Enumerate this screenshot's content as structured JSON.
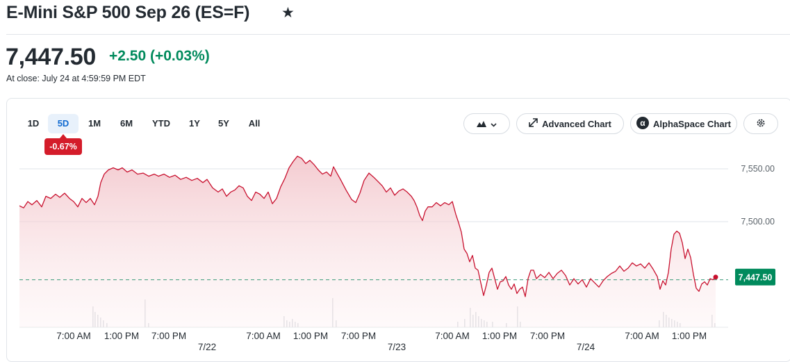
{
  "header": {
    "title": "E-Mini S&P 500 Sep 26 (ES=F)",
    "price": "7,447.50",
    "change": "+2.50  (+0.03%)",
    "close_time": "At close: July 24 at 4:59:59 PM EDT",
    "star_icon": "star-icon"
  },
  "ranges": [
    "1D",
    "5D",
    "1M",
    "6M",
    "YTD",
    "1Y",
    "5Y",
    "All"
  ],
  "active_range": "5D",
  "range_change_badge": "-0.67%",
  "toolbar": {
    "chart_type_icon": "mountain-chart-icon",
    "advanced_label": "Advanced Chart",
    "alphaspace_label": "AlphaSpace Chart",
    "settings_icon": "gear-icon"
  },
  "colors": {
    "line": "#c8102e",
    "fill": "#f6d4d8",
    "up": "#008a5c",
    "badge": "#d41c2a",
    "volume": "#dfe1e4"
  },
  "chart_data": {
    "type": "area",
    "yticks": [
      7500,
      7550
    ],
    "ytick_labels": [
      "7,500.00",
      "7,550.00"
    ],
    "ylim": [
      7420,
      7565
    ],
    "previous_close_line": 7445,
    "last_price_label": "7,447.50",
    "days": [
      "7/22",
      "7/23",
      "7/24"
    ],
    "xtick_labels": [
      "7:00 AM",
      "1:00 PM",
      "7:00 PM",
      "7:00 AM",
      "1:00 PM",
      "7:00 PM",
      "7:00 AM",
      "1:00 PM",
      "7:00 PM",
      "7:00 AM",
      "1:00 PM"
    ],
    "xlabel": "",
    "ylabel": "",
    "grid": true,
    "price_points": [
      [
        0,
        7515
      ],
      [
        6,
        7513
      ],
      [
        12,
        7519
      ],
      [
        18,
        7516
      ],
      [
        25,
        7520
      ],
      [
        32,
        7514
      ],
      [
        38,
        7524
      ],
      [
        45,
        7522
      ],
      [
        52,
        7526
      ],
      [
        58,
        7523
      ],
      [
        65,
        7527
      ],
      [
        72,
        7522
      ],
      [
        78,
        7519
      ],
      [
        84,
        7514
      ],
      [
        90,
        7522
      ],
      [
        96,
        7518
      ],
      [
        102,
        7522
      ],
      [
        108,
        7516
      ],
      [
        113,
        7524
      ],
      [
        117,
        7537
      ],
      [
        122,
        7545
      ],
      [
        128,
        7549
      ],
      [
        135,
        7551
      ],
      [
        142,
        7549
      ],
      [
        148,
        7551
      ],
      [
        155,
        7547
      ],
      [
        162,
        7549
      ],
      [
        170,
        7545
      ],
      [
        178,
        7546
      ],
      [
        186,
        7543
      ],
      [
        194,
        7545
      ],
      [
        200,
        7543
      ],
      [
        208,
        7545
      ],
      [
        216,
        7542
      ],
      [
        224,
        7544
      ],
      [
        232,
        7540
      ],
      [
        240,
        7542
      ],
      [
        248,
        7539
      ],
      [
        256,
        7541
      ],
      [
        264,
        7537
      ],
      [
        270,
        7540
      ],
      [
        278,
        7532
      ],
      [
        286,
        7528
      ],
      [
        292,
        7531
      ],
      [
        298,
        7524
      ],
      [
        304,
        7528
      ],
      [
        310,
        7530
      ],
      [
        316,
        7534
      ],
      [
        322,
        7532
      ],
      [
        328,
        7524
      ],
      [
        334,
        7520
      ],
      [
        340,
        7528
      ],
      [
        346,
        7526
      ],
      [
        352,
        7522
      ],
      [
        358,
        7528
      ],
      [
        364,
        7517
      ],
      [
        370,
        7522
      ],
      [
        376,
        7533
      ],
      [
        382,
        7541
      ],
      [
        388,
        7551
      ],
      [
        394,
        7557
      ],
      [
        400,
        7562
      ],
      [
        406,
        7560
      ],
      [
        412,
        7555
      ],
      [
        418,
        7558
      ],
      [
        424,
        7554
      ],
      [
        430,
        7549
      ],
      [
        436,
        7545
      ],
      [
        442,
        7547
      ],
      [
        448,
        7543
      ],
      [
        452,
        7552
      ],
      [
        456,
        7547
      ],
      [
        462,
        7540
      ],
      [
        470,
        7530
      ],
      [
        478,
        7521
      ],
      [
        484,
        7518
      ],
      [
        490,
        7527
      ],
      [
        496,
        7539
      ],
      [
        503,
        7546
      ],
      [
        510,
        7542
      ],
      [
        516,
        7538
      ],
      [
        522,
        7534
      ],
      [
        528,
        7528
      ],
      [
        534,
        7532
      ],
      [
        540,
        7525
      ],
      [
        546,
        7529
      ],
      [
        552,
        7531
      ],
      [
        558,
        7528
      ],
      [
        564,
        7524
      ],
      [
        568,
        7520
      ],
      [
        572,
        7514
      ],
      [
        576,
        7506
      ],
      [
        580,
        7501
      ],
      [
        584,
        7510
      ],
      [
        588,
        7514
      ],
      [
        594,
        7514
      ],
      [
        600,
        7518
      ],
      [
        606,
        7515
      ],
      [
        612,
        7518
      ],
      [
        618,
        7516
      ],
      [
        623,
        7519
      ],
      [
        628,
        7507
      ],
      [
        632,
        7499
      ],
      [
        636,
        7490
      ],
      [
        640,
        7474
      ],
      [
        644,
        7470
      ],
      [
        648,
        7462
      ],
      [
        652,
        7468
      ],
      [
        656,
        7456
      ],
      [
        660,
        7454
      ],
      [
        664,
        7442
      ],
      [
        668,
        7430
      ],
      [
        672,
        7440
      ],
      [
        676,
        7452
      ],
      [
        680,
        7456
      ],
      [
        684,
        7446
      ],
      [
        688,
        7436
      ],
      [
        692,
        7443
      ],
      [
        696,
        7444
      ],
      [
        700,
        7448
      ],
      [
        704,
        7440
      ],
      [
        708,
        7436
      ],
      [
        712,
        7441
      ],
      [
        716,
        7432
      ],
      [
        720,
        7436
      ],
      [
        724,
        7438
      ],
      [
        728,
        7429
      ],
      [
        732,
        7446
      ],
      [
        736,
        7454
      ],
      [
        740,
        7454
      ],
      [
        744,
        7446
      ],
      [
        750,
        7450
      ],
      [
        756,
        7447
      ],
      [
        762,
        7452
      ],
      [
        768,
        7446
      ],
      [
        774,
        7451
      ],
      [
        780,
        7454
      ],
      [
        786,
        7449
      ],
      [
        792,
        7440
      ],
      [
        798,
        7446
      ],
      [
        804,
        7441
      ],
      [
        810,
        7445
      ],
      [
        816,
        7438
      ],
      [
        822,
        7446
      ],
      [
        828,
        7442
      ],
      [
        834,
        7438
      ],
      [
        840,
        7444
      ],
      [
        846,
        7448
      ],
      [
        852,
        7451
      ],
      [
        858,
        7453
      ],
      [
        864,
        7458
      ],
      [
        870,
        7453
      ],
      [
        876,
        7456
      ],
      [
        882,
        7461
      ],
      [
        888,
        7458
      ],
      [
        894,
        7460
      ],
      [
        900,
        7456
      ],
      [
        906,
        7461
      ],
      [
        912,
        7455
      ],
      [
        918,
        7448
      ],
      [
        922,
        7436
      ],
      [
        926,
        7444
      ],
      [
        930,
        7440
      ],
      [
        934,
        7452
      ],
      [
        938,
        7474
      ],
      [
        942,
        7488
      ],
      [
        946,
        7491
      ],
      [
        950,
        7489
      ],
      [
        954,
        7480
      ],
      [
        958,
        7465
      ],
      [
        962,
        7474
      ],
      [
        966,
        7466
      ],
      [
        970,
        7450
      ],
      [
        974,
        7437
      ],
      [
        978,
        7434
      ],
      [
        982,
        7441
      ],
      [
        986,
        7443
      ],
      [
        990,
        7440
      ],
      [
        994,
        7446
      ],
      [
        998,
        7445
      ],
      [
        1002,
        7447.5
      ]
    ],
    "volume_points": [
      [
        105,
        30
      ],
      [
        108,
        22
      ],
      [
        112,
        18
      ],
      [
        116,
        14
      ],
      [
        120,
        10
      ],
      [
        125,
        6
      ],
      [
        180,
        40
      ],
      [
        185,
        6
      ],
      [
        380,
        16
      ],
      [
        384,
        10
      ],
      [
        388,
        8
      ],
      [
        392,
        12
      ],
      [
        396,
        8
      ],
      [
        400,
        6
      ],
      [
        450,
        42
      ],
      [
        455,
        10
      ],
      [
        630,
        8
      ],
      [
        640,
        12
      ],
      [
        648,
        28
      ],
      [
        652,
        18
      ],
      [
        656,
        22
      ],
      [
        660,
        16
      ],
      [
        664,
        12
      ],
      [
        668,
        10
      ],
      [
        672,
        8
      ],
      [
        680,
        8
      ],
      [
        700,
        6
      ],
      [
        716,
        30
      ],
      [
        720,
        8
      ],
      [
        920,
        10
      ],
      [
        926,
        22
      ],
      [
        930,
        18
      ],
      [
        934,
        14
      ],
      [
        938,
        12
      ],
      [
        942,
        10
      ],
      [
        946,
        8
      ],
      [
        950,
        6
      ],
      [
        996,
        18
      ],
      [
        1000,
        6
      ]
    ]
  }
}
